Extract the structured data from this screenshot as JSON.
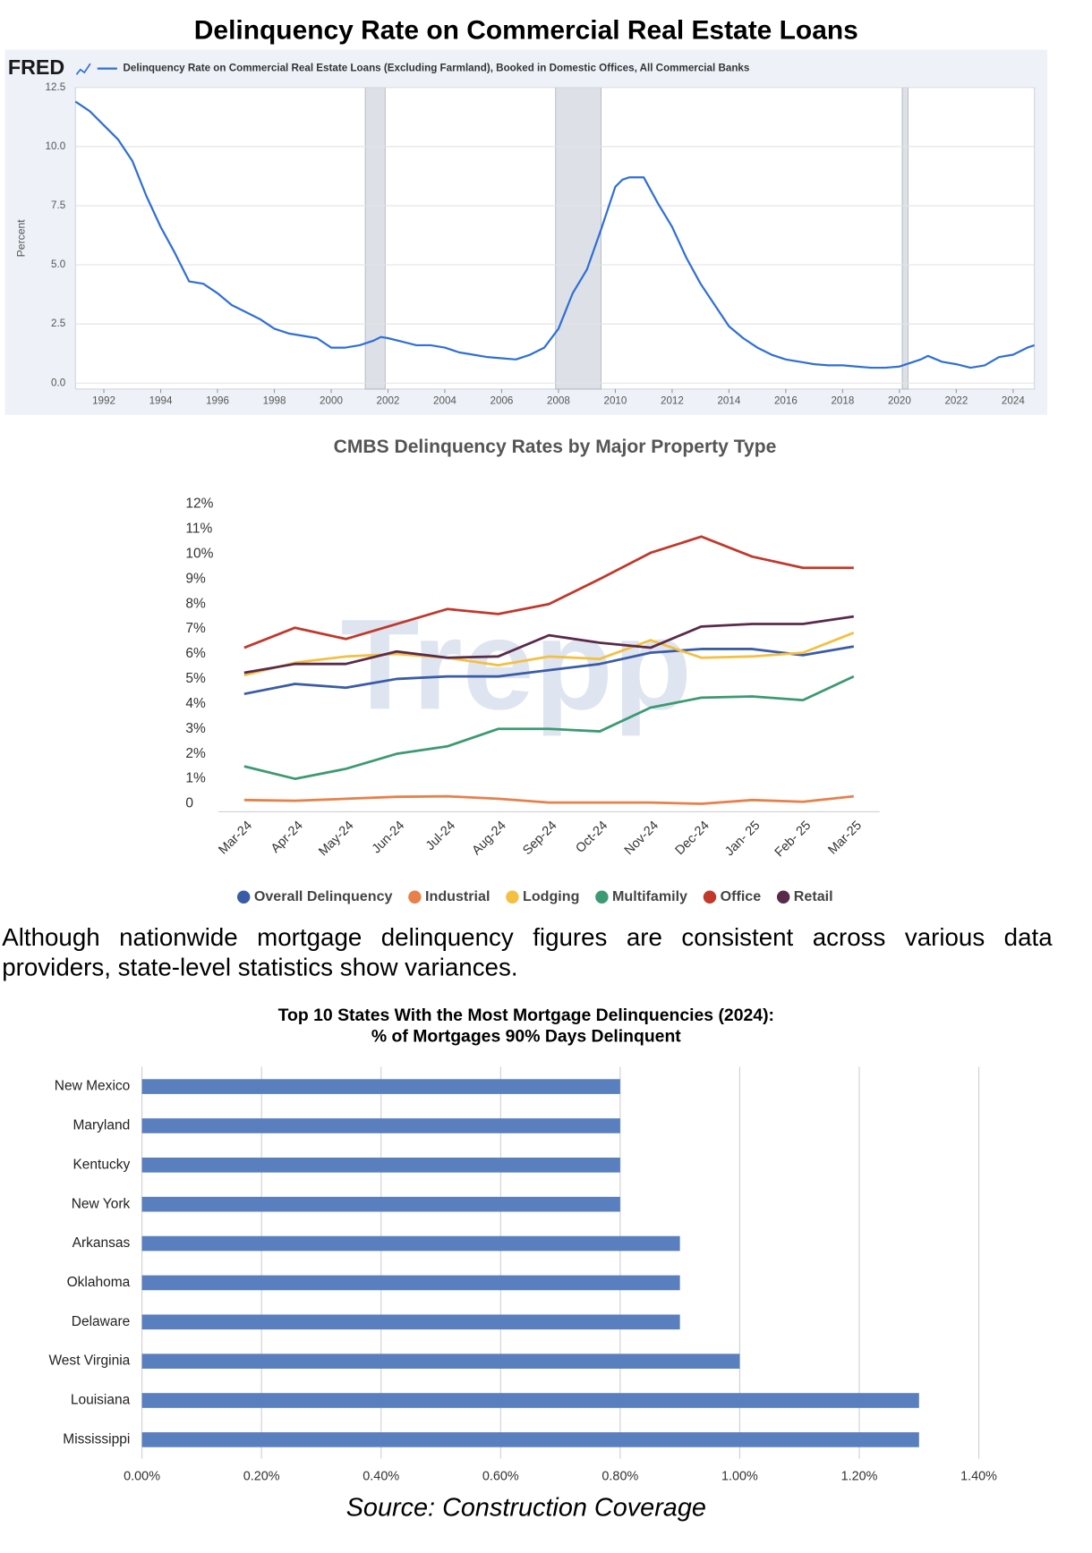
{
  "chart_data": [
    {
      "type": "line",
      "title": "Delinquency Rate on Commercial Real Estate Loans",
      "logo": "FRED",
      "ylabel": "Percent",
      "x": [
        1991,
        1991.5,
        1992,
        1992.5,
        1993,
        1993.5,
        1994,
        1994.5,
        1995,
        1995.5,
        1996,
        1996.5,
        1997,
        1997.5,
        1998,
        1998.5,
        1999,
        1999.5,
        2000,
        2000.5,
        2001,
        2001.5,
        2001.75,
        2002,
        2002.5,
        2003,
        2003.5,
        2004,
        2004.5,
        2005,
        2005.5,
        2006,
        2006.5,
        2007,
        2007.5,
        2008,
        2008.5,
        2009,
        2009.5,
        2010,
        2010.25,
        2010.5,
        2011,
        2011.5,
        2012,
        2012.5,
        2013,
        2013.5,
        2014,
        2014.5,
        2015,
        2015.5,
        2016,
        2016.5,
        2017,
        2017.5,
        2018,
        2018.5,
        2019,
        2019.5,
        2020,
        2020.5,
        2020.75,
        2021,
        2021.5,
        2022,
        2022.5,
        2023,
        2023.5,
        2024,
        2024.5,
        2024.75
      ],
      "series": [
        {
          "name": "Delinquency Rate on Commercial Real Estate Loans (Excluding Farmland), Booked in Domestic Offices, All Commercial Banks",
          "color": "#2f6fd6",
          "values": [
            11.9,
            11.5,
            10.9,
            10.3,
            9.4,
            7.9,
            6.6,
            5.5,
            4.3,
            4.2,
            3.8,
            3.3,
            3.0,
            2.7,
            2.3,
            2.1,
            2.0,
            1.9,
            1.5,
            1.5,
            1.6,
            1.8,
            1.95,
            1.9,
            1.75,
            1.6,
            1.6,
            1.5,
            1.3,
            1.2,
            1.1,
            1.05,
            1.0,
            1.2,
            1.5,
            2.3,
            3.8,
            4.8,
            6.5,
            8.3,
            8.6,
            8.7,
            8.7,
            7.6,
            6.6,
            5.3,
            4.2,
            3.3,
            2.4,
            1.9,
            1.5,
            1.2,
            1.0,
            0.9,
            0.8,
            0.75,
            0.75,
            0.7,
            0.65,
            0.65,
            0.7,
            0.9,
            1.0,
            1.15,
            0.9,
            0.8,
            0.65,
            0.75,
            1.1,
            1.2,
            1.5,
            1.6
          ]
        }
      ],
      "recessions": [
        [
          2001.2,
          2001.9
        ],
        [
          2007.9,
          2009.5
        ],
        [
          2020.1,
          2020.3
        ]
      ],
      "xlim": [
        1991,
        2024.75
      ],
      "xticks": [
        1992,
        1994,
        1996,
        1998,
        2000,
        2002,
        2004,
        2006,
        2008,
        2010,
        2012,
        2014,
        2016,
        2018,
        2020,
        2022,
        2024
      ],
      "ylim": [
        0,
        12.5
      ],
      "yticks": [
        {
          "value": 0,
          "label": "0.0"
        },
        2.5,
        {
          "value": 5,
          "label": "5.0"
        },
        7.5,
        {
          "value": 10,
          "label": "10.0"
        },
        12.5
      ],
      "grid": true
    },
    {
      "type": "line",
      "title": "CMBS Delinquency Rates by Major Property Type",
      "watermark": "Trepp",
      "categories": [
        "Mar-24",
        "Apr-24",
        "May-24",
        "Jun-24",
        "Jul-24",
        "Aug-24",
        "Sep-24",
        "Oct-24",
        "Nov-24",
        "Dec-24",
        "Jan- 25",
        "Feb- 25",
        "Mar-25"
      ],
      "series": [
        {
          "name": "Overall Delinquency",
          "color": "#3a5ba8",
          "values": [
            4.4,
            4.8,
            4.65,
            5.0,
            5.1,
            5.1,
            5.35,
            5.6,
            6.05,
            6.2,
            6.2,
            5.95,
            6.3
          ]
        },
        {
          "name": "Industrial",
          "color": "#e8804a",
          "values": [
            0.15,
            0.12,
            0.2,
            0.28,
            0.3,
            0.2,
            0.05,
            0.05,
            0.05,
            0.0,
            0.15,
            0.08,
            0.3
          ]
        },
        {
          "name": "Lodging",
          "color": "#f3c042",
          "values": [
            5.15,
            5.65,
            5.9,
            6.0,
            5.85,
            5.55,
            5.9,
            5.8,
            6.55,
            5.85,
            5.9,
            6.05,
            6.85
          ]
        },
        {
          "name": "Multifamily",
          "color": "#3c9a72",
          "values": [
            1.5,
            1.0,
            1.4,
            2.0,
            2.3,
            3.0,
            3.0,
            2.9,
            3.85,
            4.25,
            4.3,
            4.15,
            5.1
          ]
        },
        {
          "name": "Office",
          "color": "#c0392b",
          "values": [
            6.25,
            7.05,
            6.6,
            7.2,
            7.8,
            7.6,
            8.0,
            9.0,
            10.05,
            10.7,
            9.9,
            9.45,
            9.45
          ]
        },
        {
          "name": "Retail",
          "color": "#5a2a4a",
          "values": [
            5.25,
            5.6,
            5.6,
            6.1,
            5.85,
            5.9,
            6.75,
            6.45,
            6.25,
            7.1,
            7.2,
            7.2,
            7.5
          ]
        }
      ],
      "ylim": [
        0,
        12
      ],
      "yticks": [
        0,
        {
          "value": 1,
          "label": "1%"
        },
        {
          "value": 2,
          "label": "2%"
        },
        {
          "value": 3,
          "label": "3%"
        },
        {
          "value": 4,
          "label": "4%"
        },
        {
          "value": 5,
          "label": "5%"
        },
        {
          "value": 6,
          "label": "6%"
        },
        {
          "value": 7,
          "label": "7%"
        },
        {
          "value": 8,
          "label": "8%"
        },
        {
          "value": 9,
          "label": "9%"
        },
        {
          "value": 10,
          "label": "10%"
        },
        {
          "value": 11,
          "label": "11%"
        },
        {
          "value": 12,
          "label": "12%"
        }
      ],
      "legend": "bottom"
    },
    {
      "type": "bar",
      "orientation": "horizontal",
      "title_lines": [
        "Top 10 States With the Most Mortgage Delinquencies (2024):",
        "% of Mortgages 90% Days Delinquent"
      ],
      "categories": [
        "New Mexico",
        "Maryland",
        "Kentucky",
        "New York",
        "Arkansas",
        "Oklahoma",
        "Delaware",
        "West Virginia",
        "Louisiana",
        "Mississippi"
      ],
      "values": [
        0.8,
        0.8,
        0.8,
        0.8,
        0.9,
        0.9,
        0.9,
        1.0,
        1.3,
        1.3
      ],
      "color": "#5a7fbf",
      "xlim": [
        0,
        1.4
      ],
      "xticks": [
        {
          "value": 0,
          "label": "0.00%"
        },
        {
          "value": 0.2,
          "label": "0.20%"
        },
        {
          "value": 0.4,
          "label": "0.40%"
        },
        {
          "value": 0.6,
          "label": "0.60%"
        },
        {
          "value": 0.8,
          "label": "0.80%"
        },
        {
          "value": 1.0,
          "label": "1.00%"
        },
        {
          "value": 1.2,
          "label": "1.20%"
        },
        {
          "value": 1.4,
          "label": "1.40%"
        }
      ],
      "grid": true
    }
  ],
  "paragraph": "Although nationwide mortgage delinquency figures are consistent across various data providers, state-level statistics show variances.",
  "source": "Source: Construction Coverage"
}
